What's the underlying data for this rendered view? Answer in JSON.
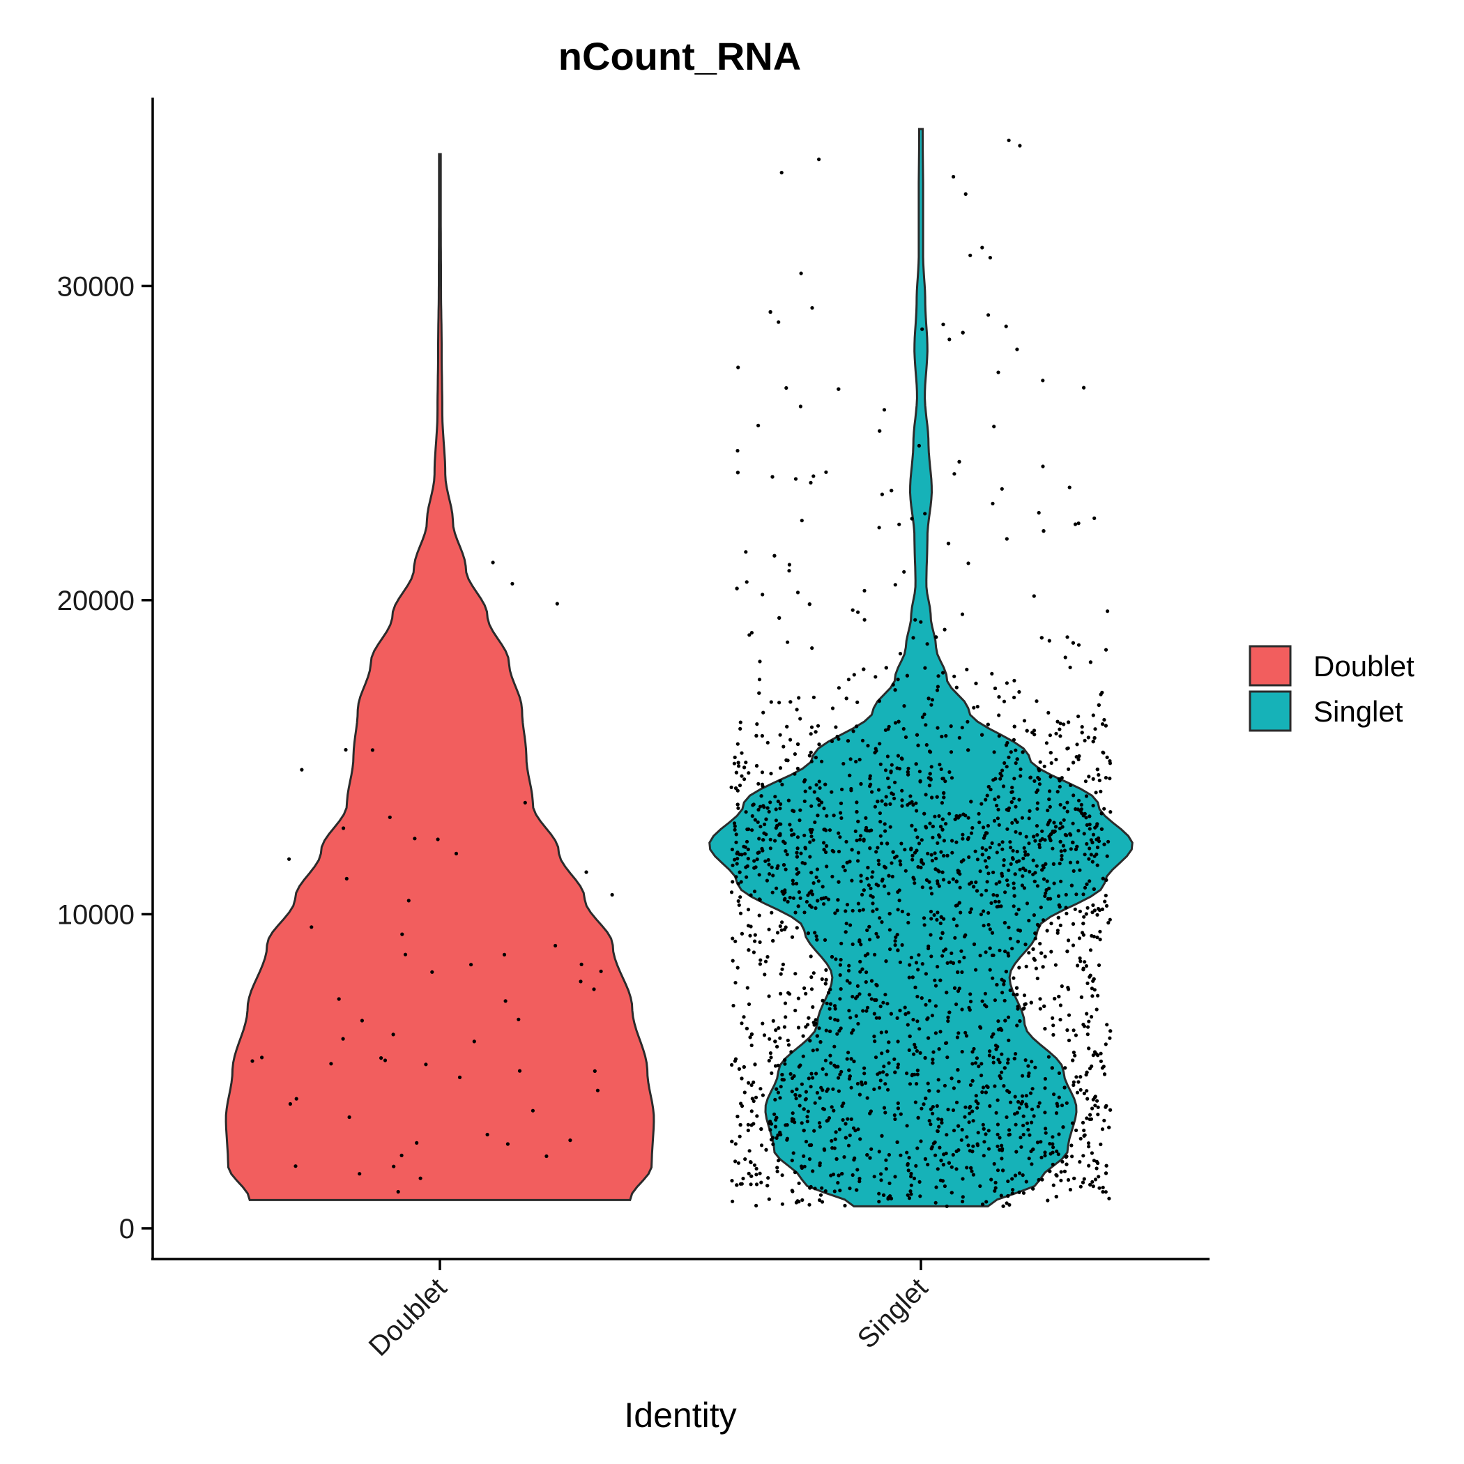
{
  "chart_data": {
    "type": "violin",
    "title": "nCount_RNA",
    "xlabel": "Identity",
    "ylabel": "",
    "ylim": [
      -1000,
      36000
    ],
    "yticks": [
      0,
      10000,
      20000,
      30000
    ],
    "ytick_labels": [
      "0",
      "10000",
      "20000",
      "30000"
    ],
    "categories": [
      "Doublet",
      "Singlet"
    ],
    "legend": {
      "title": "",
      "position": "right",
      "entries": [
        "Doublet",
        "Singlet"
      ]
    },
    "grid": false,
    "series": [
      {
        "name": "Doublet",
        "color": "#F25E5E",
        "range": [
          900,
          34200
        ],
        "approx_point_count": 60,
        "density_profile": [
          {
            "y": 900,
            "w": 0.88
          },
          {
            "y": 2000,
            "w": 0.98
          },
          {
            "y": 3500,
            "w": 0.99
          },
          {
            "y": 5000,
            "w": 0.96
          },
          {
            "y": 7000,
            "w": 0.89
          },
          {
            "y": 9000,
            "w": 0.8
          },
          {
            "y": 10500,
            "w": 0.67
          },
          {
            "y": 12000,
            "w": 0.55
          },
          {
            "y": 13500,
            "w": 0.43
          },
          {
            "y": 15000,
            "w": 0.4
          },
          {
            "y": 16500,
            "w": 0.38
          },
          {
            "y": 18000,
            "w": 0.32
          },
          {
            "y": 19500,
            "w": 0.22
          },
          {
            "y": 21000,
            "w": 0.12
          },
          {
            "y": 22500,
            "w": 0.06
          },
          {
            "y": 24000,
            "w": 0.025
          },
          {
            "y": 26000,
            "w": 0.011
          },
          {
            "y": 28000,
            "w": 0.008
          },
          {
            "y": 30000,
            "w": 0.005
          },
          {
            "y": 32000,
            "w": 0.004
          },
          {
            "y": 34200,
            "w": 0.003
          }
        ]
      },
      {
        "name": "Singlet",
        "color": "#16B2B8",
        "range": [
          700,
          35000
        ],
        "approx_point_count": 2600,
        "density_profile": [
          {
            "y": 700,
            "w": 0.31
          },
          {
            "y": 1500,
            "w": 0.55
          },
          {
            "y": 2500,
            "w": 0.68
          },
          {
            "y": 3800,
            "w": 0.72
          },
          {
            "y": 5000,
            "w": 0.66
          },
          {
            "y": 6500,
            "w": 0.48
          },
          {
            "y": 8000,
            "w": 0.41
          },
          {
            "y": 9500,
            "w": 0.54
          },
          {
            "y": 11000,
            "w": 0.85
          },
          {
            "y": 12200,
            "w": 0.98
          },
          {
            "y": 13500,
            "w": 0.82
          },
          {
            "y": 15000,
            "w": 0.5
          },
          {
            "y": 16500,
            "w": 0.22
          },
          {
            "y": 17500,
            "w": 0.12
          },
          {
            "y": 18500,
            "w": 0.07
          },
          {
            "y": 19500,
            "w": 0.045
          },
          {
            "y": 20500,
            "w": 0.025
          },
          {
            "y": 22000,
            "w": 0.03
          },
          {
            "y": 23500,
            "w": 0.05
          },
          {
            "y": 25000,
            "w": 0.035
          },
          {
            "y": 26500,
            "w": 0.018
          },
          {
            "y": 28000,
            "w": 0.03
          },
          {
            "y": 29500,
            "w": 0.02
          },
          {
            "y": 31000,
            "w": 0.01
          },
          {
            "y": 33000,
            "w": 0.01
          },
          {
            "y": 35000,
            "w": 0.008
          }
        ]
      }
    ]
  }
}
